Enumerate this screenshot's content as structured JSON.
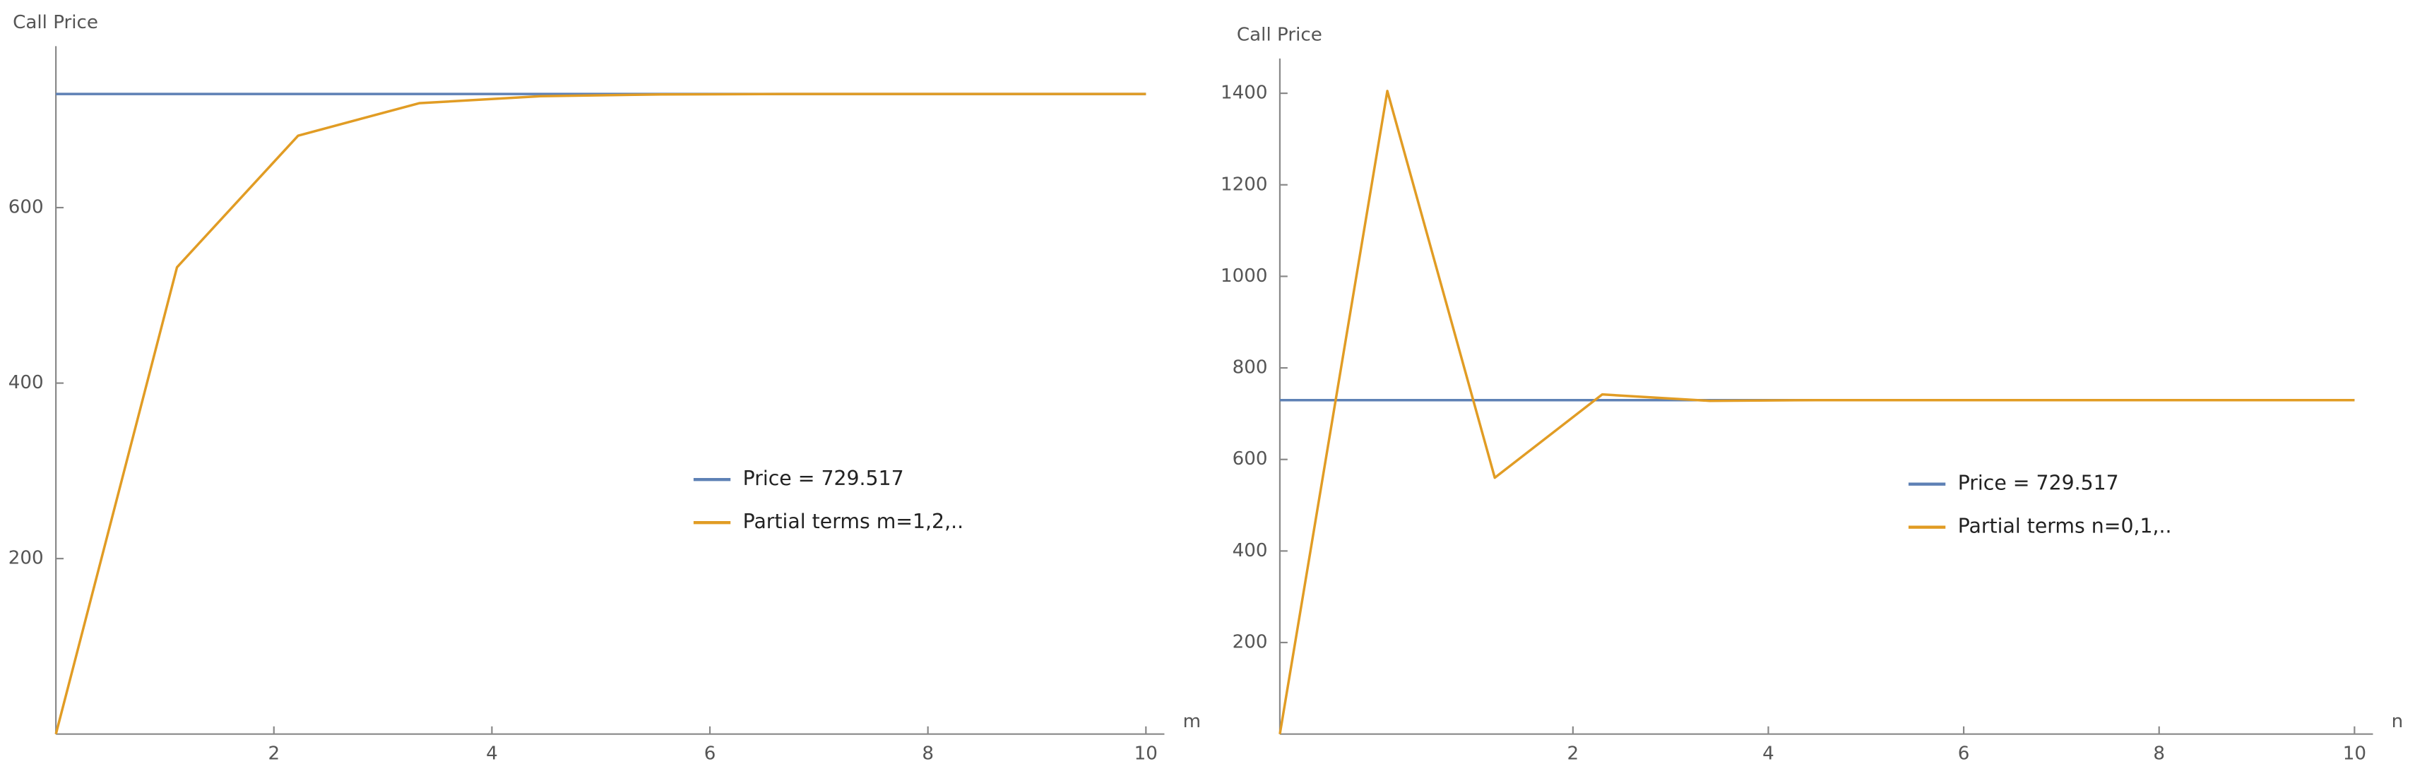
{
  "chart_data": [
    {
      "type": "line",
      "y_label": "Call Price",
      "x_label": "m",
      "xlim": [
        0,
        10
      ],
      "ylim": [
        0,
        784
      ],
      "xticks": [
        2,
        4,
        6,
        8,
        10
      ],
      "yticks": [
        200,
        400,
        600
      ],
      "legend": "center-right",
      "series": [
        {
          "name": "Price = 729.517",
          "color": "#5e81b5",
          "x": [
            0,
            10
          ],
          "values": [
            729.517,
            729.517
          ]
        },
        {
          "name": "Partial terms m=1,2,..",
          "color": "#e19c24",
          "x": [
            0,
            1.111,
            2.222,
            3.333,
            4.444,
            5.556,
            6.667,
            7.778,
            8.889,
            10
          ],
          "values": [
            0,
            532,
            682,
            719,
            727,
            729,
            729.5,
            729.5,
            729.5,
            729.5
          ]
        }
      ]
    },
    {
      "type": "line",
      "y_label": "Call Price",
      "x_label": "n",
      "xlim": [
        -1,
        10
      ],
      "ylim": [
        0,
        1476
      ],
      "xticks": [
        2,
        4,
        6,
        8,
        10
      ],
      "yticks": [
        200,
        400,
        600,
        800,
        1000,
        1200,
        1400
      ],
      "legend": "center-right",
      "series": [
        {
          "name": "Price = 729.517",
          "color": "#5e81b5",
          "x": [
            -1,
            10
          ],
          "values": [
            729.517,
            729.517
          ]
        },
        {
          "name": "Partial terms n=0,1,..",
          "color": "#e19c24",
          "x": [
            -1,
            0.1,
            1.2,
            2.3,
            3.4,
            4.5,
            5.6,
            6.7,
            7.8,
            8.9,
            10
          ],
          "values": [
            0,
            1405,
            560,
            742,
            728,
            729.6,
            729.5,
            729.5,
            729.5,
            729.5,
            729.5
          ]
        }
      ]
    }
  ]
}
